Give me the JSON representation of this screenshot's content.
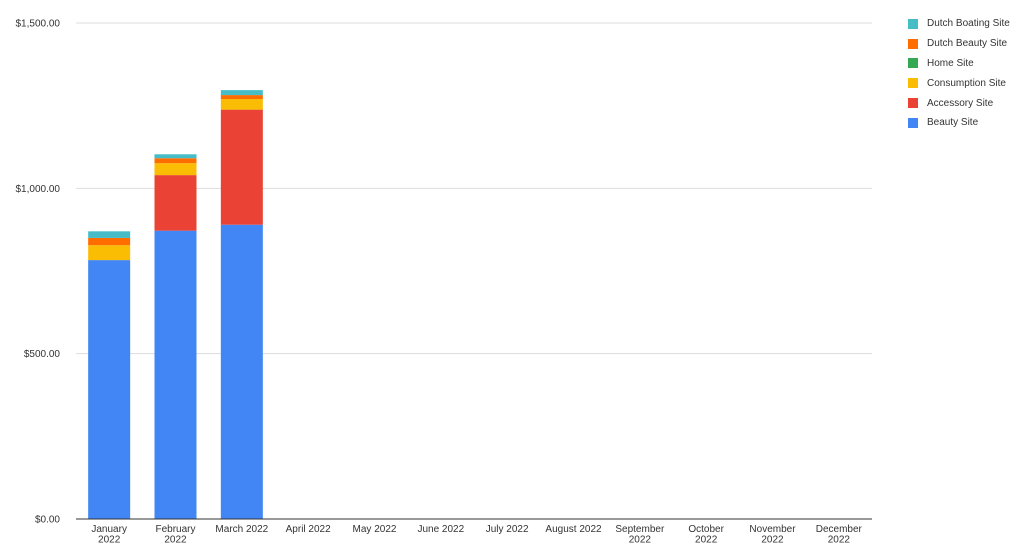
{
  "chart_data": {
    "type": "bar",
    "stacked": true,
    "title": "",
    "xlabel": "",
    "ylabel": "",
    "ylim": [
      0,
      1500
    ],
    "yticks": [
      0,
      500,
      1000,
      1500
    ],
    "ytick_labels": [
      "$0.00",
      "$500.00",
      "$1,000.00",
      "$1,500.00"
    ],
    "grid": true,
    "legend_position": "right",
    "categories": [
      [
        "January",
        "2022"
      ],
      [
        "February",
        "2022"
      ],
      [
        "March 2022"
      ],
      [
        "April 2022"
      ],
      [
        "May 2022"
      ],
      [
        "June 2022"
      ],
      [
        "July 2022"
      ],
      [
        "August 2022"
      ],
      [
        "September",
        "2022"
      ],
      [
        "October",
        "2022"
      ],
      [
        "November",
        "2022"
      ],
      [
        "December",
        "2022"
      ]
    ],
    "series": [
      {
        "name": "Beauty Site",
        "color": "#4285F4",
        "values": [
          783,
          872,
          890,
          0,
          0,
          0,
          0,
          0,
          0,
          0,
          0,
          0
        ]
      },
      {
        "name": "Accessory Site",
        "color": "#EA4335",
        "values": [
          0,
          168,
          348,
          0,
          0,
          0,
          0,
          0,
          0,
          0,
          0,
          0
        ]
      },
      {
        "name": "Consumption Site",
        "color": "#FBBC04",
        "values": [
          45,
          36,
          32,
          0,
          0,
          0,
          0,
          0,
          0,
          0,
          0,
          0
        ]
      },
      {
        "name": "Home Site",
        "color": "#34A853",
        "values": [
          0,
          0,
          0,
          0,
          0,
          0,
          0,
          0,
          0,
          0,
          0,
          0
        ]
      },
      {
        "name": "Dutch Beauty Site",
        "color": "#FF6D01",
        "values": [
          22,
          15,
          12,
          0,
          0,
          0,
          0,
          0,
          0,
          0,
          0,
          0
        ]
      },
      {
        "name": "Dutch Boating Site",
        "color": "#46BDC6",
        "values": [
          20,
          12,
          15,
          0,
          0,
          0,
          0,
          0,
          0,
          0,
          0,
          0
        ]
      }
    ],
    "legend_order": [
      "Dutch Boating Site",
      "Dutch Beauty Site",
      "Home Site",
      "Consumption Site",
      "Accessory Site",
      "Beauty Site"
    ]
  }
}
